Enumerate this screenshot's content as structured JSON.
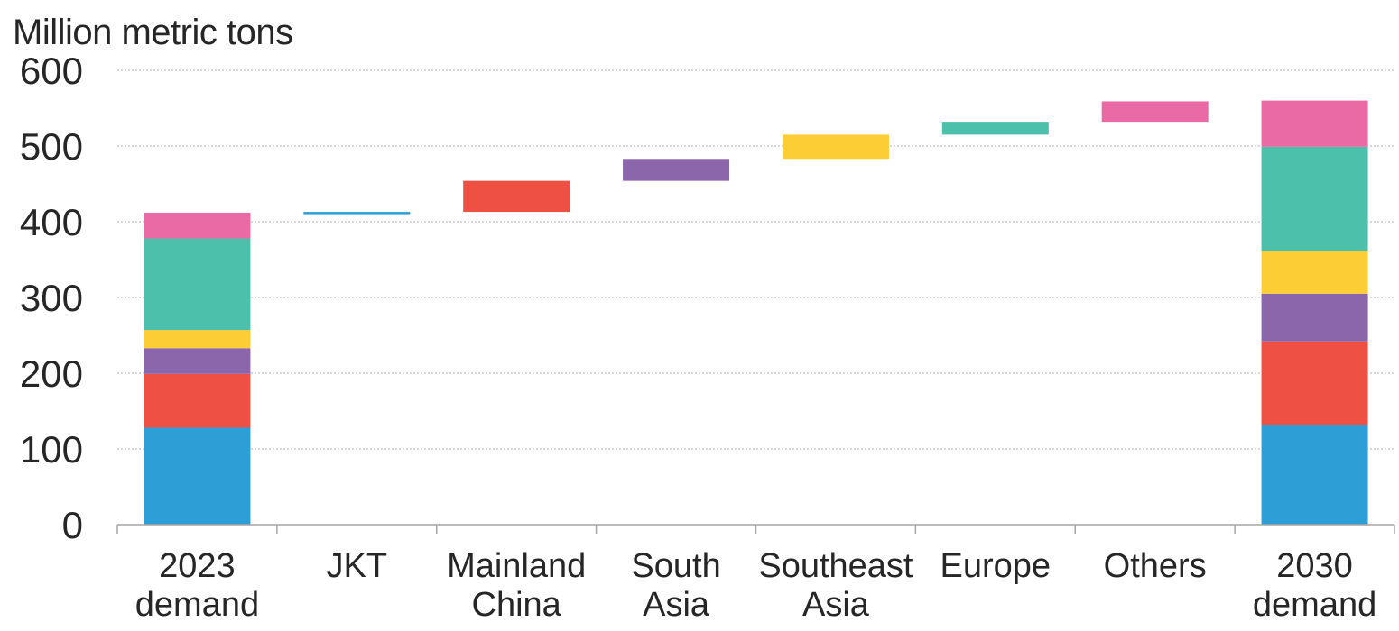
{
  "chart_data": {
    "type": "bar",
    "subtype": "waterfall-stacked",
    "ylabel": "Million metric tons",
    "ylim": [
      0,
      600
    ],
    "yticks": [
      0,
      100,
      200,
      300,
      400,
      500,
      600
    ],
    "grid": true,
    "categories": [
      "2023\ndemand",
      "JKT",
      "Mainland\nChina",
      "South\nAsia",
      "Southeast\nAsia",
      "Europe",
      "Others",
      "2030\ndemand"
    ],
    "segment_colors": [
      "#2e9fd6",
      "#ee5043",
      "#8b66aa",
      "#fdcd35",
      "#4cc0aa",
      "#e96aa5"
    ],
    "stacks": [
      {
        "category": "2023\ndemand",
        "segments": [
          128,
          71,
          34,
          24,
          121,
          34
        ]
      },
      {
        "category": "2030\ndemand",
        "segments": [
          131,
          111,
          63,
          56,
          138,
          61
        ]
      }
    ],
    "increments": [
      {
        "category": "JKT",
        "start": 410,
        "end": 413,
        "color": "#2e9fd6"
      },
      {
        "category": "Mainland\nChina",
        "start": 413,
        "end": 454,
        "color": "#ee5043"
      },
      {
        "category": "South\nAsia",
        "start": 454,
        "end": 483,
        "color": "#8b66aa"
      },
      {
        "category": "Southeast\nAsia",
        "start": 483,
        "end": 515,
        "color": "#fdcd35"
      },
      {
        "category": "Europe",
        "start": 515,
        "end": 532,
        "color": "#4cc0aa"
      },
      {
        "category": "Others",
        "start": 532,
        "end": 559,
        "color": "#e96aa5"
      }
    ]
  }
}
